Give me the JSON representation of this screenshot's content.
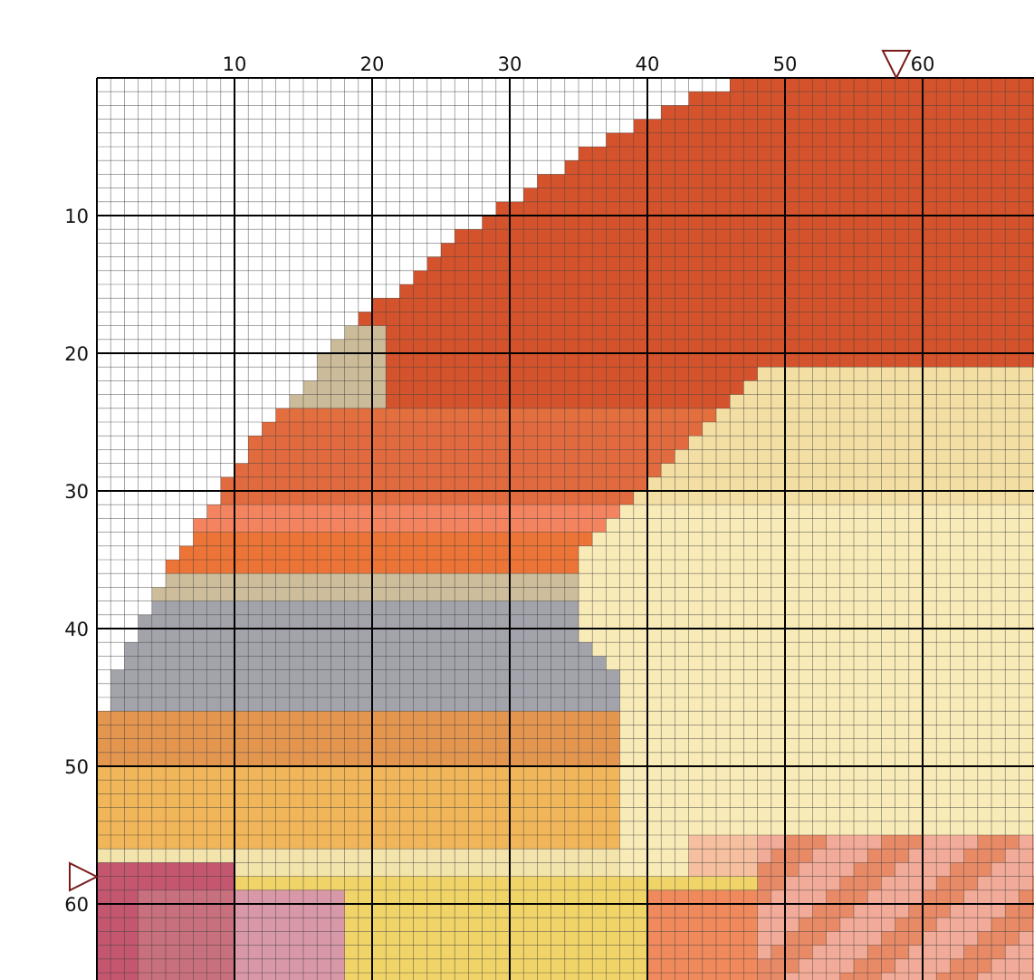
{
  "column_labels": [
    "10",
    "20",
    "30",
    "40",
    "50",
    "60"
  ],
  "row_labels": [
    "10",
    "20",
    "30",
    "40",
    "50",
    "60"
  ]
}
